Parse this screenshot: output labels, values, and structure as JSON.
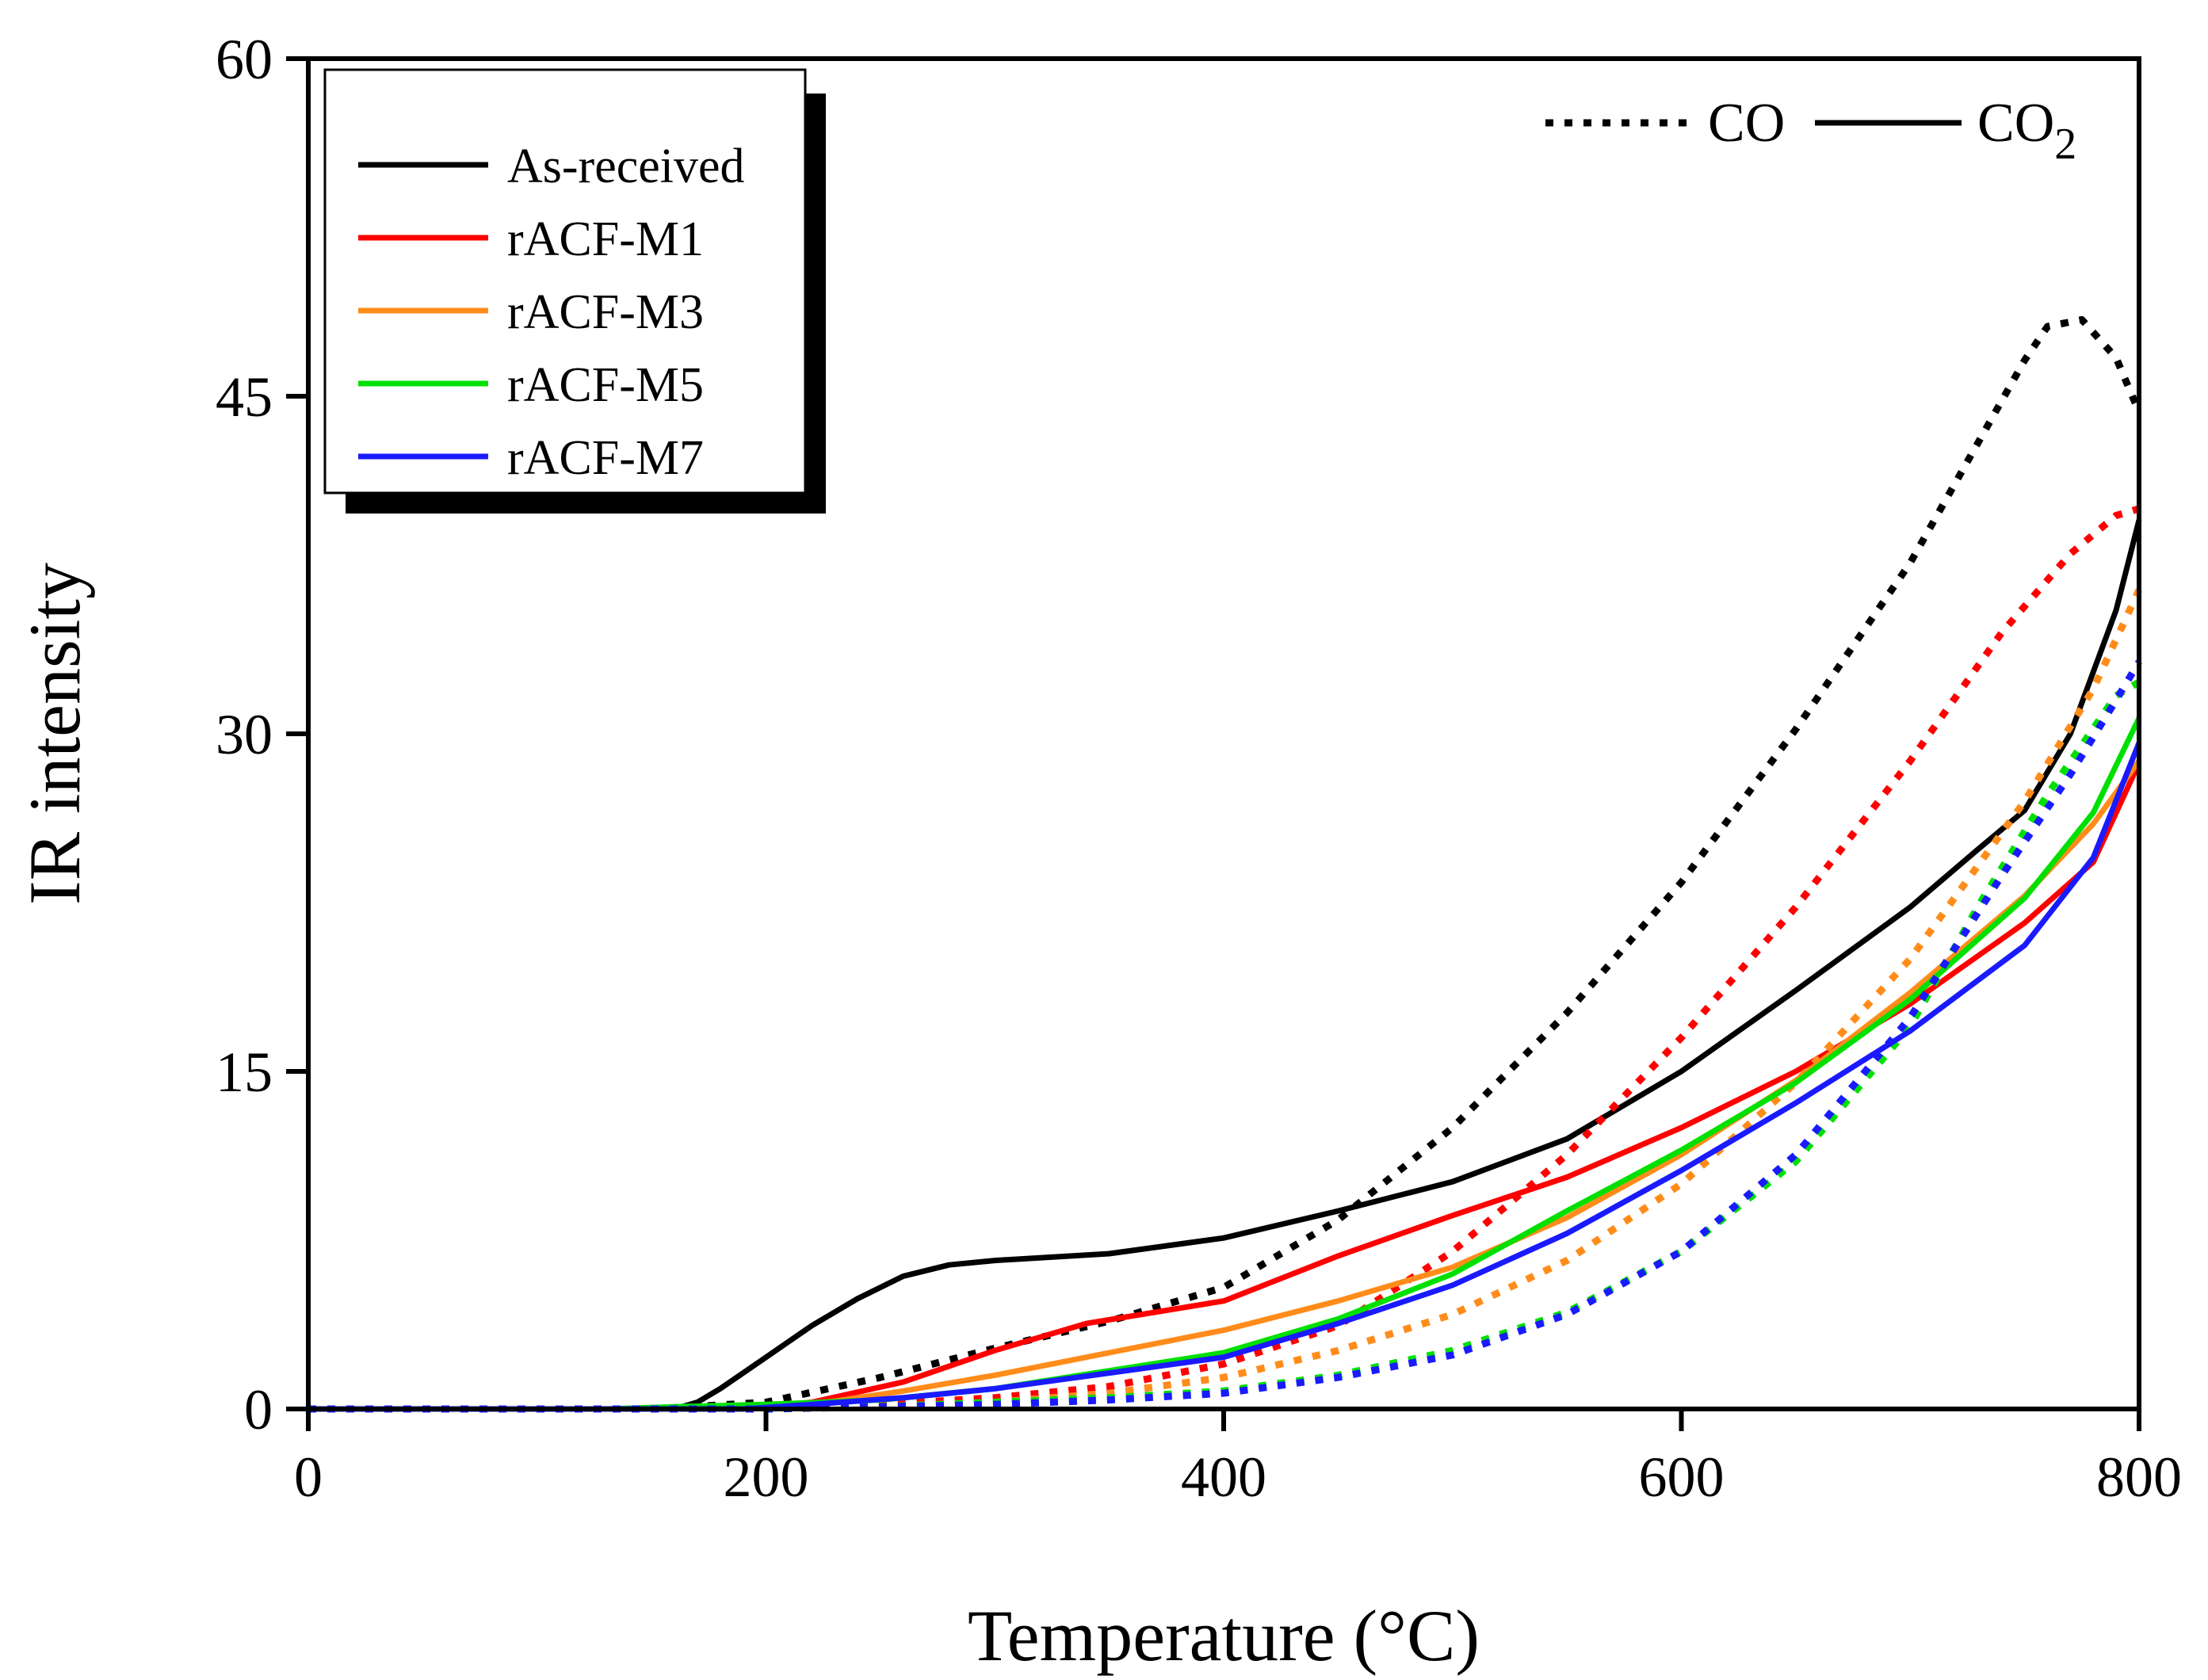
{
  "chart_data": {
    "type": "line",
    "title": "",
    "xlabel": "Temperature (°C)",
    "ylabel": "IR intensity",
    "xlim": [
      0,
      800
    ],
    "ylim": [
      0,
      60
    ],
    "xticks": [
      0,
      200,
      400,
      600,
      800
    ],
    "yticks": [
      0,
      15,
      30,
      45,
      60
    ],
    "legend_position": "top-left",
    "line_styles": [
      {
        "label": "CO",
        "style": "dotted"
      },
      {
        "label": "CO",
        "subscript": "2",
        "style": "solid"
      }
    ],
    "series": [
      {
        "name": "As-received",
        "color": "#000000",
        "co2": [
          [
            0,
            0
          ],
          [
            160,
            0
          ],
          [
            170,
            0.3
          ],
          [
            180,
            0.9
          ],
          [
            200,
            2.3
          ],
          [
            220,
            3.7
          ],
          [
            240,
            4.9
          ],
          [
            260,
            5.9
          ],
          [
            280,
            6.4
          ],
          [
            300,
            6.6
          ],
          [
            350,
            6.9
          ],
          [
            400,
            7.6
          ],
          [
            450,
            8.8
          ],
          [
            500,
            10.1
          ],
          [
            550,
            12.0
          ],
          [
            600,
            15.0
          ],
          [
            650,
            18.6
          ],
          [
            700,
            22.3
          ],
          [
            730,
            24.9
          ],
          [
            750,
            26.6
          ],
          [
            770,
            30.0
          ],
          [
            790,
            35.5
          ],
          [
            800,
            39.5
          ]
        ],
        "co": [
          [
            0,
            0
          ],
          [
            150,
            0
          ],
          [
            200,
            0.3
          ],
          [
            250,
            1.4
          ],
          [
            300,
            2.7
          ],
          [
            350,
            3.9
          ],
          [
            400,
            5.4
          ],
          [
            450,
            8.4
          ],
          [
            500,
            12.5
          ],
          [
            550,
            17.6
          ],
          [
            600,
            23.4
          ],
          [
            650,
            30.2
          ],
          [
            700,
            37.6
          ],
          [
            730,
            43.0
          ],
          [
            750,
            46.6
          ],
          [
            760,
            48.1
          ],
          [
            775,
            48.4
          ],
          [
            790,
            46.7
          ],
          [
            800,
            44.3
          ]
        ]
      },
      {
        "name": "rACF-M1",
        "color": "#ff0000",
        "co2": [
          [
            0,
            0
          ],
          [
            190,
            0
          ],
          [
            220,
            0.3
          ],
          [
            260,
            1.2
          ],
          [
            300,
            2.6
          ],
          [
            340,
            3.8
          ],
          [
            400,
            4.8
          ],
          [
            450,
            6.8
          ],
          [
            500,
            8.6
          ],
          [
            550,
            10.3
          ],
          [
            600,
            12.5
          ],
          [
            650,
            15.0
          ],
          [
            700,
            18.0
          ],
          [
            750,
            21.6
          ],
          [
            780,
            24.3
          ],
          [
            800,
            28.7
          ]
        ],
        "co": [
          [
            0,
            0
          ],
          [
            200,
            0
          ],
          [
            250,
            0.2
          ],
          [
            300,
            0.5
          ],
          [
            350,
            1.0
          ],
          [
            400,
            2.0
          ],
          [
            450,
            3.7
          ],
          [
            500,
            7.0
          ],
          [
            550,
            11.3
          ],
          [
            600,
            16.5
          ],
          [
            650,
            22.3
          ],
          [
            700,
            28.8
          ],
          [
            740,
            34.5
          ],
          [
            770,
            38.0
          ],
          [
            790,
            39.7
          ],
          [
            800,
            40.0
          ]
        ]
      },
      {
        "name": "rACF-M3",
        "color": "#ff8c1a",
        "co2": [
          [
            0,
            0
          ],
          [
            190,
            0
          ],
          [
            220,
            0.2
          ],
          [
            260,
            0.8
          ],
          [
            300,
            1.5
          ],
          [
            350,
            2.5
          ],
          [
            400,
            3.5
          ],
          [
            450,
            4.8
          ],
          [
            500,
            6.3
          ],
          [
            550,
            8.5
          ],
          [
            600,
            11.3
          ],
          [
            650,
            14.6
          ],
          [
            700,
            18.5
          ],
          [
            750,
            22.8
          ],
          [
            780,
            26.0
          ],
          [
            800,
            28.8
          ]
        ],
        "co": [
          [
            0,
            0
          ],
          [
            200,
            0
          ],
          [
            250,
            0.1
          ],
          [
            300,
            0.3
          ],
          [
            350,
            0.7
          ],
          [
            400,
            1.4
          ],
          [
            450,
            2.6
          ],
          [
            500,
            4.2
          ],
          [
            550,
            6.6
          ],
          [
            600,
            10.0
          ],
          [
            650,
            14.5
          ],
          [
            700,
            20.0
          ],
          [
            750,
            27.0
          ],
          [
            780,
            32.0
          ],
          [
            800,
            36.4
          ]
        ]
      },
      {
        "name": "rACF-M5",
        "color": "#00e000",
        "co2": [
          [
            0,
            0
          ],
          [
            130,
            0
          ],
          [
            160,
            0.1
          ],
          [
            200,
            0.2
          ],
          [
            250,
            0.4
          ],
          [
            300,
            0.9
          ],
          [
            350,
            1.7
          ],
          [
            400,
            2.5
          ],
          [
            450,
            4.0
          ],
          [
            500,
            6.0
          ],
          [
            550,
            8.8
          ],
          [
            600,
            11.5
          ],
          [
            650,
            14.5
          ],
          [
            700,
            18.2
          ],
          [
            750,
            22.7
          ],
          [
            780,
            26.5
          ],
          [
            800,
            30.7
          ]
        ],
        "co": [
          [
            0,
            0
          ],
          [
            200,
            0
          ],
          [
            250,
            0.1
          ],
          [
            300,
            0.3
          ],
          [
            350,
            0.5
          ],
          [
            400,
            0.8
          ],
          [
            450,
            1.5
          ],
          [
            500,
            2.6
          ],
          [
            550,
            4.3
          ],
          [
            600,
            7.0
          ],
          [
            650,
            11.0
          ],
          [
            700,
            17.0
          ],
          [
            730,
            22.4
          ],
          [
            760,
            27.3
          ],
          [
            790,
            31.7
          ],
          [
            800,
            32.3
          ]
        ]
      },
      {
        "name": "rACF-M7",
        "color": "#1a1aff",
        "co2": [
          [
            0,
            0
          ],
          [
            190,
            0
          ],
          [
            220,
            0.2
          ],
          [
            260,
            0.5
          ],
          [
            300,
            0.9
          ],
          [
            350,
            1.6
          ],
          [
            400,
            2.3
          ],
          [
            450,
            3.8
          ],
          [
            500,
            5.5
          ],
          [
            550,
            7.8
          ],
          [
            600,
            10.6
          ],
          [
            650,
            13.6
          ],
          [
            700,
            16.8
          ],
          [
            750,
            20.6
          ],
          [
            780,
            24.5
          ],
          [
            800,
            29.6
          ]
        ],
        "co": [
          [
            0,
            0
          ],
          [
            200,
            0
          ],
          [
            250,
            0.1
          ],
          [
            300,
            0.2
          ],
          [
            350,
            0.4
          ],
          [
            400,
            0.7
          ],
          [
            450,
            1.4
          ],
          [
            500,
            2.4
          ],
          [
            550,
            4.2
          ],
          [
            600,
            7.0
          ],
          [
            650,
            11.3
          ],
          [
            700,
            17.4
          ],
          [
            740,
            23.7
          ],
          [
            770,
            28.2
          ],
          [
            790,
            31.5
          ],
          [
            800,
            33.2
          ]
        ]
      }
    ]
  }
}
